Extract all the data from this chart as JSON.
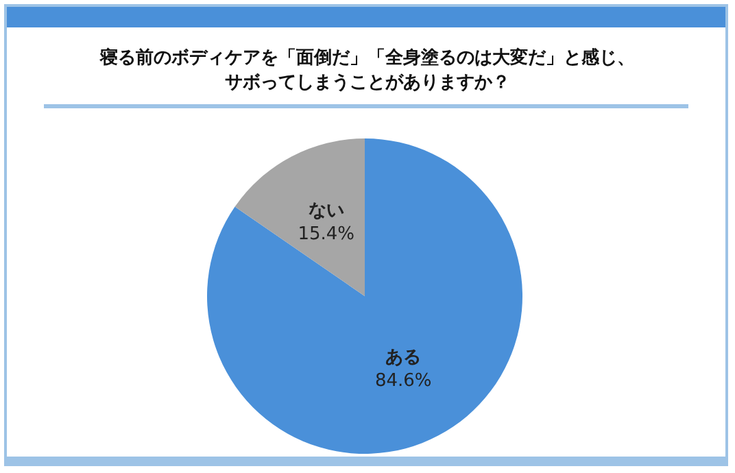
{
  "chart_data": {
    "type": "pie",
    "title": "寝る前のボディケアを「面倒だ」「全身塗るのは大変だ」と感じ、サボってしまうことがありますか？",
    "categories": [
      "ある",
      "ない"
    ],
    "values": [
      84.6,
      15.4
    ],
    "colors": [
      "#4a90d9",
      "#a6a6a6"
    ],
    "value_labels": [
      "84.6%",
      "15.4%"
    ],
    "legend": false
  }
}
